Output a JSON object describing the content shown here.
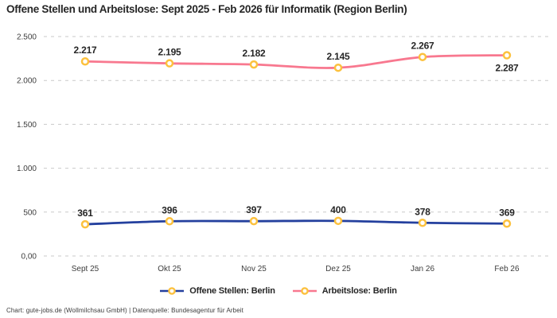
{
  "title": "Offene Stellen und Arbeitslose: Sept 2025 - Feb 2026 für Informatik (Region Berlin)",
  "footer": {
    "text": "Chart: gute-jobs.de (Wollmilchsau GmbH) | Datenquelle: Bundesagentur für Arbeit"
  },
  "colors": {
    "series_blue": "#24409e",
    "series_pink": "#f8788f",
    "marker_ring_yellow": "#fcc13e",
    "marker_fill": "#ffffff",
    "gridline": "#c9c9c9",
    "text_primary": "#262626",
    "text_axis": "#3d3d3d"
  },
  "chart_data": {
    "type": "line",
    "categories": [
      "Sept 25",
      "Okt 25",
      "Nov 25",
      "Dez 25",
      "Jan 26",
      "Feb 26"
    ],
    "series": [
      {
        "name": "Offene Stellen: Berlin",
        "color": "#24409e",
        "marker_color": "#fcc13e",
        "values": [
          361,
          396,
          397,
          400,
          378,
          369
        ],
        "labels": [
          "361",
          "396",
          "397",
          "400",
          "378",
          "369"
        ],
        "label_positions": [
          "above",
          "above",
          "above",
          "above",
          "above",
          "above"
        ]
      },
      {
        "name": "Arbeitslose: Berlin",
        "color": "#f8788f",
        "marker_color": "#fcc13e",
        "values": [
          2217,
          2195,
          2182,
          2145,
          2267,
          2287
        ],
        "labels": [
          "2.217",
          "2.195",
          "2.182",
          "2.145",
          "2.267",
          "2.287"
        ],
        "label_positions": [
          "above",
          "above",
          "above",
          "above",
          "above",
          "below"
        ]
      }
    ],
    "y_ticks": [
      {
        "value": 0,
        "label": "0,00"
      },
      {
        "value": 500,
        "label": "500"
      },
      {
        "value": 1000,
        "label": "1.000"
      },
      {
        "value": 1500,
        "label": "1.500"
      },
      {
        "value": 2000,
        "label": "2.000"
      },
      {
        "value": 2500,
        "label": "2.500"
      }
    ],
    "ylim": [
      0,
      2500
    ],
    "xlabel": "",
    "ylabel": "",
    "grid": "dashed-horizontal",
    "legend_position": "bottom",
    "marker_style": "ring"
  }
}
